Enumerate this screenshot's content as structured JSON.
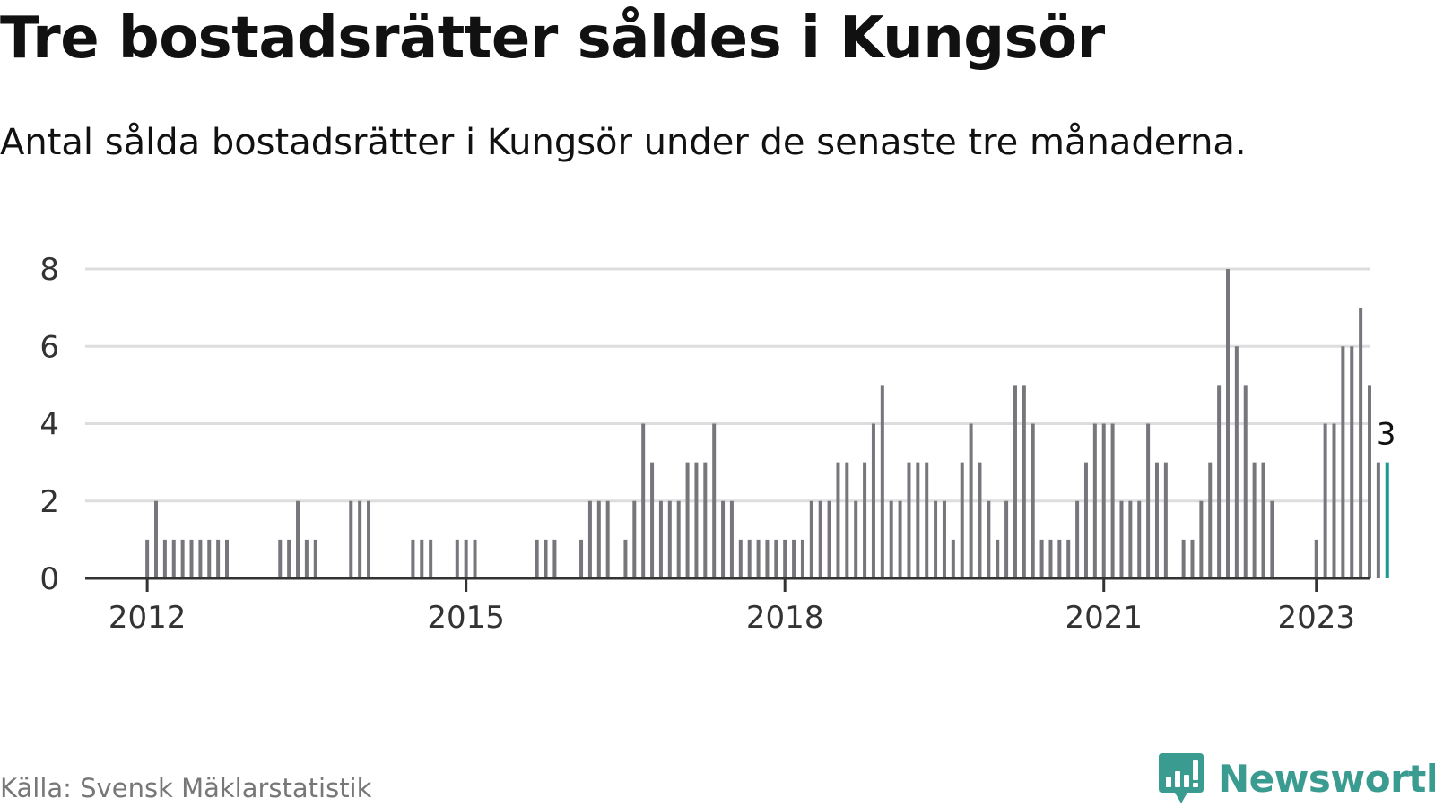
{
  "header": {
    "title": "Tre bostadsrätter såldes i Kungsör",
    "subtitle": "Antal sålda bostadsrätter i Kungsör under de senaste tre månaderna."
  },
  "footer": {
    "source": "Källa: Svensk Mäklarstatistik",
    "brand": "Newsworthy",
    "brand_icon": "bar-chart-speech-bubble-icon"
  },
  "colors": {
    "bar": "#77767c",
    "highlight": "#1a9a8f",
    "grid": "#dddddd",
    "axis": "#333333",
    "brand": "#3a9b91"
  },
  "chart_data": {
    "type": "bar",
    "title": "Tre bostadsrätter såldes i Kungsör",
    "subtitle": "Antal sålda bostadsrätter i Kungsör under de senaste tre månaderna.",
    "xlabel": "",
    "ylabel": "",
    "x_start": "2012-01",
    "x_end": "2023-01",
    "x_range": [
      "2011-06",
      "2023-07"
    ],
    "x_interval": "month",
    "x_ticks": [
      "2012",
      "2015",
      "2018",
      "2021",
      "2023"
    ],
    "ylim": [
      0,
      8
    ],
    "y_ticks": [
      0,
      2,
      4,
      6,
      8
    ],
    "grid": true,
    "legend": "none",
    "highlight_last_label": "3",
    "values": [
      1,
      2,
      1,
      1,
      1,
      1,
      1,
      1,
      1,
      1,
      0,
      0,
      0,
      0,
      0,
      1,
      1,
      2,
      1,
      1,
      0,
      0,
      0,
      2,
      2,
      2,
      0,
      0,
      0,
      0,
      1,
      1,
      1,
      0,
      0,
      1,
      1,
      1,
      0,
      0,
      0,
      0,
      0,
      0,
      1,
      1,
      1,
      0,
      0,
      1,
      2,
      2,
      2,
      0,
      1,
      2,
      4,
      3,
      2,
      2,
      2,
      3,
      3,
      3,
      4,
      2,
      2,
      1,
      1,
      1,
      1,
      1,
      1,
      1,
      1,
      2,
      2,
      2,
      3,
      3,
      2,
      3,
      4,
      5,
      2,
      2,
      3,
      3,
      3,
      2,
      2,
      1,
      3,
      4,
      3,
      2,
      1,
      2,
      5,
      5,
      4,
      1,
      1,
      1,
      1,
      2,
      3,
      4,
      4,
      4,
      2,
      2,
      2,
      4,
      3,
      3,
      0,
      1,
      1,
      2,
      3,
      5,
      8,
      6,
      5,
      3,
      3,
      2,
      0,
      0,
      0,
      0,
      1,
      4,
      4,
      6,
      6,
      7,
      5,
      3,
      3
    ]
  }
}
